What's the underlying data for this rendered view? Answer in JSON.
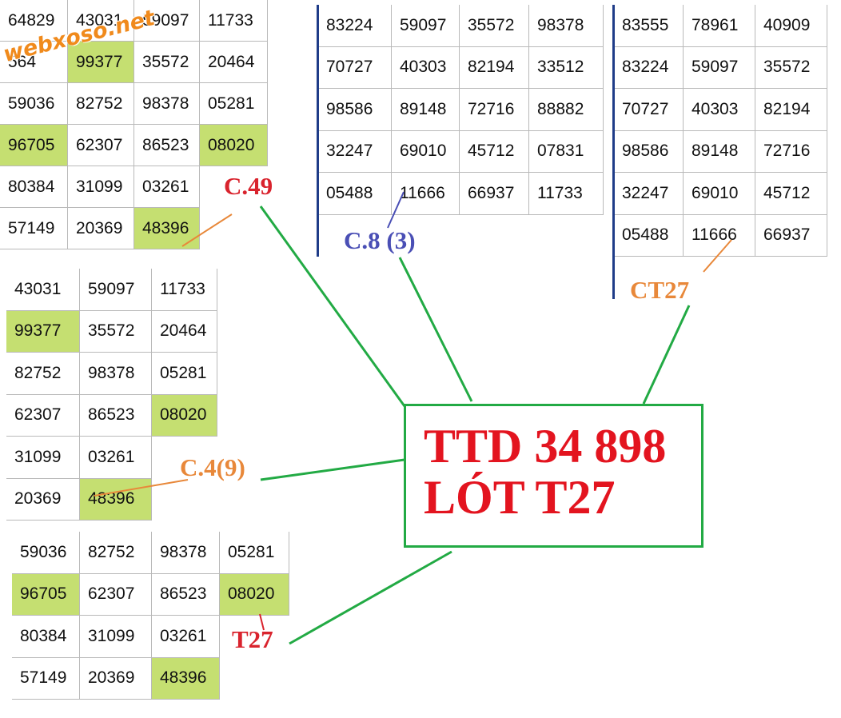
{
  "watermark": "webxoso.net",
  "panels": [
    {
      "label": "C.49",
      "label_color": "#d9232d",
      "rows": [
        [
          "64829",
          "43031",
          "59097",
          "11733"
        ],
        [
          "564",
          "99377",
          "35572",
          "20464"
        ],
        [
          "59036",
          "82752",
          "98378",
          "05281"
        ],
        [
          "96705",
          "62307",
          "86523",
          "08020"
        ],
        [
          "80384",
          "31099",
          "03261"
        ],
        [
          "57149",
          "20369",
          "48396"
        ]
      ],
      "green_cells": [
        [
          1,
          1
        ],
        [
          3,
          0
        ],
        [
          3,
          3
        ],
        [
          5,
          2
        ]
      ]
    },
    {
      "label": "C.8 (3)",
      "label_color": "#4a4fb5",
      "rows": [
        [
          "83224",
          "59097",
          "35572",
          "98378"
        ],
        [
          "70727",
          "40303",
          "82194",
          "33512"
        ],
        [
          "98586",
          "89148",
          "72716",
          "88882"
        ],
        [
          "32247",
          "69010",
          "45712",
          "07831"
        ],
        [
          "05488",
          "11666",
          "66937",
          "11733"
        ]
      ],
      "green_cells": []
    },
    {
      "label": "CT27",
      "label_color": "#e8883a",
      "rows": [
        [
          "83555",
          "78961",
          "40909"
        ],
        [
          "83224",
          "59097",
          "35572"
        ],
        [
          "70727",
          "40303",
          "82194"
        ],
        [
          "98586",
          "89148",
          "72716"
        ],
        [
          "32247",
          "69010",
          "45712"
        ],
        [
          "05488",
          "11666",
          "66937"
        ]
      ],
      "green_cells": []
    },
    {
      "label": "C.4(9)",
      "label_color": "#e8883a",
      "rows": [
        [
          "43031",
          "59097",
          "11733"
        ],
        [
          "99377",
          "35572",
          "20464"
        ],
        [
          "82752",
          "98378",
          "05281"
        ],
        [
          "62307",
          "86523",
          "08020"
        ],
        [
          "31099",
          "03261"
        ],
        [
          "20369",
          "48396"
        ]
      ],
      "green_cells": [
        [
          1,
          0
        ],
        [
          3,
          2
        ],
        [
          5,
          1
        ]
      ]
    },
    {
      "label": "T27",
      "label_color": "#d9232d",
      "rows": [
        [
          "59036",
          "82752",
          "98378",
          "05281"
        ],
        [
          "96705",
          "62307",
          "86523",
          "08020"
        ],
        [
          "80384",
          "31099",
          "03261"
        ],
        [
          "57149",
          "20369",
          "48396"
        ]
      ],
      "green_cells": [
        [
          1,
          0
        ],
        [
          1,
          3
        ],
        [
          3,
          2
        ]
      ]
    }
  ],
  "conclusion": {
    "line1": "TTD 34 898",
    "line2": "LÓT T27"
  }
}
